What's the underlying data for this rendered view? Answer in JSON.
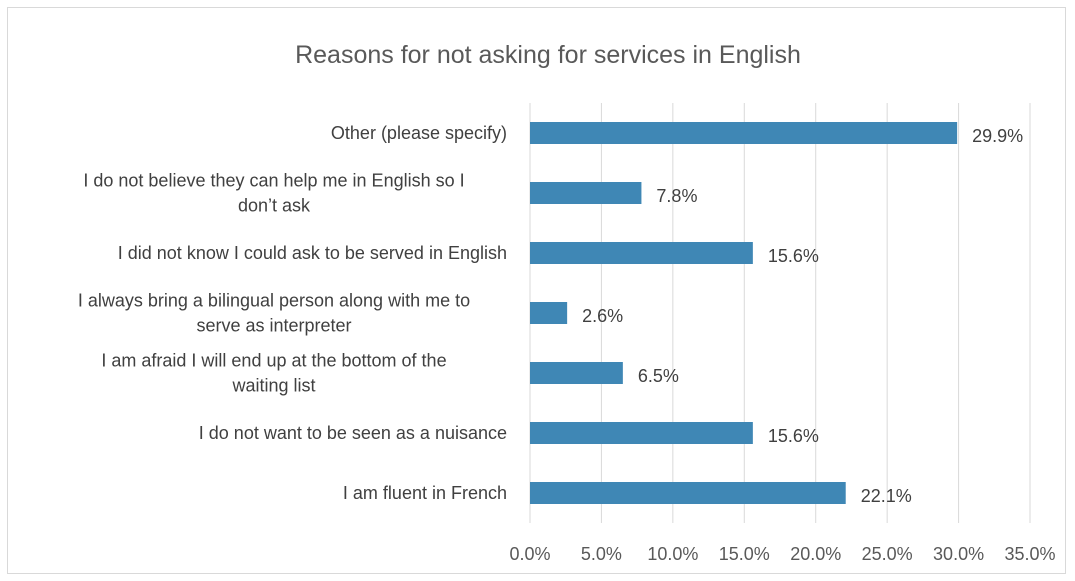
{
  "chart_data": {
    "type": "bar",
    "orientation": "horizontal",
    "title": "Reasons for not asking for services in English",
    "xlabel": "",
    "ylabel": "",
    "categories": [
      "Other (please specify)",
      "I do not believe they can help me in English so I don’t ask",
      "I did not know I could ask to be served in English",
      "I always bring a bilingual person along with me to serve as interpreter",
      "I am afraid I will end up at the bottom of the waiting list",
      "I do not want to be seen as a nuisance",
      "I am fluent in French"
    ],
    "category_lines": [
      [
        "Other (please specify)"
      ],
      [
        "I do not believe they can help me in English so I",
        "don’t ask"
      ],
      [
        "I did not know I could ask to be served in English"
      ],
      [
        "I always bring a bilingual person along with me to",
        "serve as interpreter"
      ],
      [
        "I am afraid I will end up at the bottom of the",
        "waiting list"
      ],
      [
        "I do not want to be seen as a nuisance"
      ],
      [
        "I am fluent in French"
      ]
    ],
    "values": [
      29.9,
      7.8,
      15.6,
      2.6,
      6.5,
      15.6,
      22.1
    ],
    "value_labels": [
      "29.9%",
      "7.8%",
      "15.6%",
      "2.6%",
      "6.5%",
      "15.6%",
      "22.1%"
    ],
    "xlim": [
      0,
      35
    ],
    "x_ticks": [
      0,
      5,
      10,
      15,
      20,
      25,
      30,
      35
    ],
    "x_tick_labels": [
      "0.0%",
      "5.0%",
      "10.0%",
      "15.0%",
      "20.0%",
      "25.0%",
      "30.0%",
      "35.0%"
    ],
    "grid": "vertical",
    "legend": "none",
    "bar_color": "#3f87b5",
    "grid_color": "#d9d9d9"
  }
}
